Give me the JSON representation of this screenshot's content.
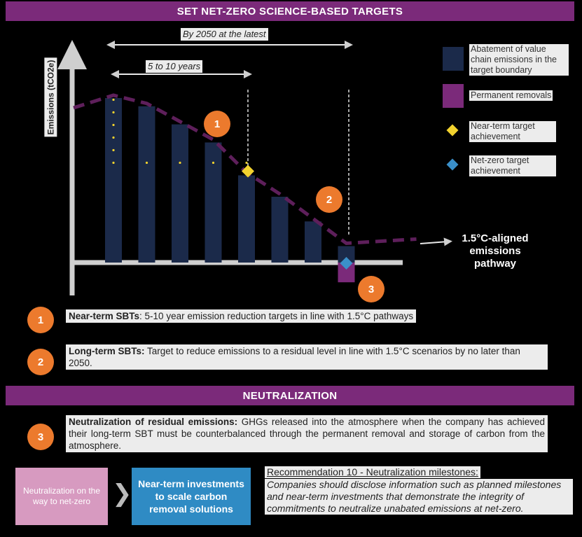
{
  "header": {
    "title": "SET NET-ZERO SCIENCE-BASED TARGETS"
  },
  "chart": {
    "ylabel": "Emissions (tCO2e)",
    "span_long": "By 2050 at the latest",
    "span_near": "5 to 10 years",
    "pathway_label": "1.5°C-aligned emissions pathway",
    "bars": [
      {
        "value": 1.0
      },
      {
        "value": 0.95
      },
      {
        "value": 0.84
      },
      {
        "value": 0.73
      },
      {
        "value": 0.53
      },
      {
        "value": 0.4
      },
      {
        "value": 0.25
      },
      {
        "value": 0.1,
        "removal": 0.12
      }
    ],
    "near_term_bar_index": 4,
    "net_zero_bar_index": 7,
    "colors": {
      "bar": "#1b2a4a",
      "removal": "#7b2a7a",
      "pathway": "#5e1f5b",
      "near_term": "#f2d22e",
      "net_zero": "#3a8fc9",
      "badge": "#ec7a2d"
    }
  },
  "legend": {
    "items": [
      {
        "label": "Abatement of value chain emissions in the target boundary",
        "kind": "bar"
      },
      {
        "label": "Permanent removals",
        "kind": "removal"
      },
      {
        "label": "Near-term target achievement",
        "kind": "near-diamond"
      },
      {
        "label": "Net-zero target achievement",
        "kind": "net-diamond"
      }
    ]
  },
  "badges": {
    "b1": "1",
    "b2": "2",
    "b3": "3"
  },
  "rows": {
    "near_term": {
      "title": "Near-term SBTs",
      "text": ": 5-10 year emission reduction targets in line with 1.5°C pathways"
    },
    "long_term": {
      "title": "Long-term SBTs:",
      "text": " Target to reduce emissions to a residual level in line with 1.5°C scenarios by no later than 2050."
    }
  },
  "neutralization": {
    "banner": "NEUTRALIZATION",
    "title": "Neutralization of residual emissions:",
    "text": " GHGs released into the atmosphere when the company has achieved their long-term SBT must be counterbalanced through the permanent removal and storage of carbon from the atmosphere.",
    "pink_box": "Neutralization on the way to net-zero",
    "blue_box": "Near-term investments to scale carbon removal solutions",
    "rec_title": "Recommendation 10 - Neutralization milestones:",
    "rec_body": "Companies should disclose information such as planned milestones and near-term investments that demonstrate the integrity of commitments to neutralize unabated emissions at net-zero."
  }
}
